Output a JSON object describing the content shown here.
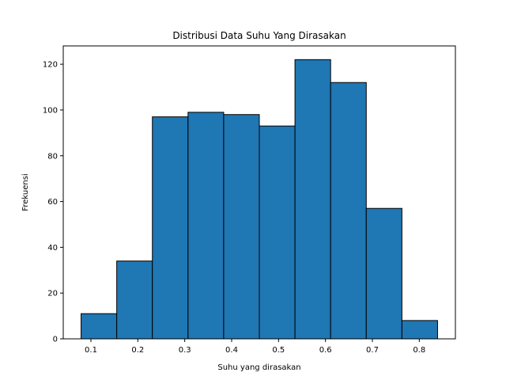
{
  "chart_data": {
    "type": "bar",
    "title": "Distribusi Data Suhu Yang Dirasakan",
    "xlabel": "Suhu yang dirasakan",
    "ylabel": "Frekuensi",
    "bin_edges": [
      0.079,
      0.155,
      0.231,
      0.307,
      0.383,
      0.459,
      0.535,
      0.611,
      0.687,
      0.763,
      0.839
    ],
    "values": [
      11,
      34,
      97,
      99,
      98,
      93,
      122,
      112,
      57,
      8
    ],
    "xlim": [
      0.041,
      0.877
    ],
    "ylim": [
      0,
      128
    ],
    "xticks": [
      0.1,
      0.2,
      0.3,
      0.4,
      0.5,
      0.6,
      0.7,
      0.8
    ],
    "xtick_labels": [
      "0.1",
      "0.2",
      "0.3",
      "0.4",
      "0.5",
      "0.6",
      "0.7",
      "0.8"
    ],
    "yticks": [
      0,
      20,
      40,
      60,
      80,
      100,
      120
    ],
    "ytick_labels": [
      "0",
      "20",
      "40",
      "60",
      "80",
      "100",
      "120"
    ],
    "grid": false,
    "bar_color": "#1f77b4",
    "edge_color": "#000000"
  }
}
